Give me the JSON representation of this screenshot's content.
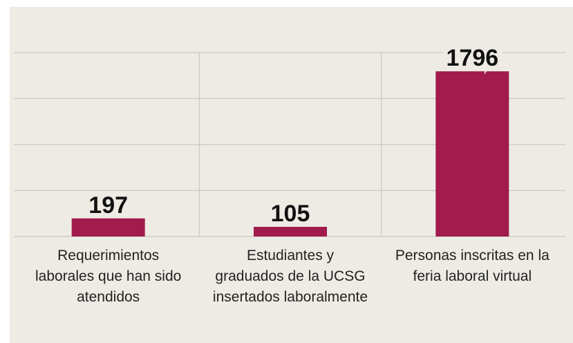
{
  "chart_data": {
    "type": "bar",
    "categories": [
      "Requerimientos laborales que han sido atendidos",
      "Estudiantes y graduados de la UCSG insertados laboralmente",
      "Personas inscritas en la feria laboral virtual"
    ],
    "values": [
      197,
      105,
      1796
    ],
    "color": "#a11b4d",
    "ylim": [
      0,
      2000
    ],
    "yticks": [
      0,
      500,
      1000,
      1500,
      2000
    ],
    "grid": true
  }
}
